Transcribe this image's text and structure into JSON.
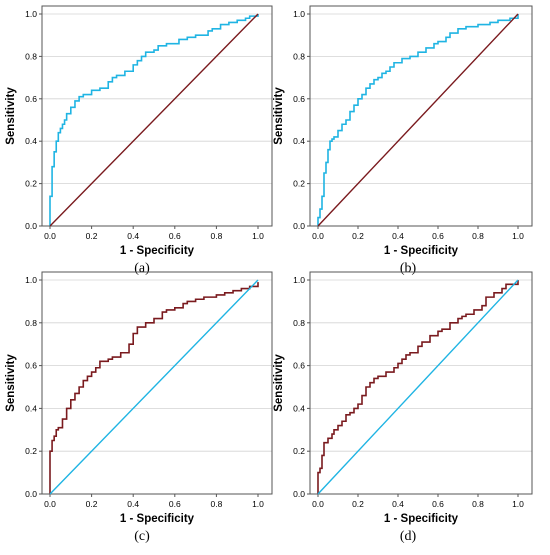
{
  "chart_data": [
    {
      "type": "line",
      "panel": "a",
      "caption": "(a)",
      "xlabel": "1 - Specificity",
      "ylabel": "Sensitivity",
      "xlim": [
        0,
        1
      ],
      "ylim": [
        0,
        1
      ],
      "x_ticks": [
        "0.0",
        "0.2",
        "0.4",
        "0.6",
        "0.8",
        "1.0"
      ],
      "y_ticks": [
        "0.0",
        "0.2",
        "0.4",
        "0.6",
        "0.8",
        "1.0"
      ],
      "grid": "horizontal",
      "colors": {
        "roc": "#1fb4e3",
        "reference": "#7a1a1e"
      },
      "series": [
        {
          "role": "roc",
          "x": [
            0.0,
            0.0,
            0.01,
            0.01,
            0.02,
            0.02,
            0.03,
            0.03,
            0.04,
            0.05,
            0.06,
            0.07,
            0.08,
            0.1,
            0.12,
            0.14,
            0.16,
            0.2,
            0.22,
            0.24,
            0.28,
            0.3,
            0.32,
            0.36,
            0.4,
            0.42,
            0.44,
            0.46,
            0.5,
            0.52,
            0.56,
            0.6,
            0.62,
            0.66,
            0.7,
            0.72,
            0.76,
            0.78,
            0.82,
            0.86,
            0.9,
            0.94,
            0.96,
            0.98,
            1.0
          ],
          "y": [
            0.0,
            0.14,
            0.2,
            0.28,
            0.3,
            0.35,
            0.36,
            0.4,
            0.44,
            0.46,
            0.48,
            0.5,
            0.53,
            0.56,
            0.59,
            0.61,
            0.62,
            0.64,
            0.64,
            0.65,
            0.68,
            0.7,
            0.71,
            0.73,
            0.76,
            0.78,
            0.8,
            0.82,
            0.83,
            0.85,
            0.86,
            0.86,
            0.88,
            0.89,
            0.9,
            0.9,
            0.92,
            0.93,
            0.95,
            0.96,
            0.97,
            0.98,
            0.99,
            0.99,
            1.0
          ]
        },
        {
          "role": "reference",
          "x": [
            0,
            1
          ],
          "y": [
            0,
            1
          ]
        }
      ]
    },
    {
      "type": "line",
      "panel": "b",
      "caption": "(b)",
      "xlabel": "1 - Specificity",
      "ylabel": "Sensitivity",
      "xlim": [
        0,
        1
      ],
      "ylim": [
        0,
        1
      ],
      "x_ticks": [
        "0.0",
        "0.2",
        "0.4",
        "0.6",
        "0.8",
        "1.0"
      ],
      "y_ticks": [
        "0.0",
        "0.2",
        "0.4",
        "0.6",
        "0.8",
        "1.0"
      ],
      "grid": "horizontal",
      "colors": {
        "roc": "#1fb4e3",
        "reference": "#7a1a1e"
      },
      "series": [
        {
          "role": "roc",
          "x": [
            0.0,
            0.0,
            0.01,
            0.02,
            0.03,
            0.03,
            0.04,
            0.05,
            0.06,
            0.07,
            0.08,
            0.1,
            0.12,
            0.14,
            0.16,
            0.18,
            0.2,
            0.22,
            0.24,
            0.26,
            0.28,
            0.3,
            0.32,
            0.34,
            0.36,
            0.38,
            0.42,
            0.46,
            0.5,
            0.54,
            0.58,
            0.6,
            0.64,
            0.66,
            0.7,
            0.74,
            0.8,
            0.86,
            0.9,
            0.96,
            1.0
          ],
          "y": [
            0.0,
            0.04,
            0.08,
            0.14,
            0.2,
            0.25,
            0.3,
            0.36,
            0.4,
            0.41,
            0.42,
            0.45,
            0.48,
            0.5,
            0.54,
            0.57,
            0.6,
            0.62,
            0.65,
            0.67,
            0.69,
            0.7,
            0.72,
            0.73,
            0.75,
            0.77,
            0.79,
            0.8,
            0.82,
            0.84,
            0.86,
            0.87,
            0.89,
            0.91,
            0.93,
            0.94,
            0.95,
            0.96,
            0.97,
            0.98,
            1.0
          ]
        },
        {
          "role": "reference",
          "x": [
            0,
            1
          ],
          "y": [
            0,
            1
          ]
        }
      ]
    },
    {
      "type": "line",
      "panel": "c",
      "caption": "(c)",
      "xlabel": "1 - Specificity",
      "ylabel": "Sensitivity",
      "xlim": [
        0,
        1
      ],
      "ylim": [
        0,
        1
      ],
      "x_ticks": [
        "0.0",
        "0.2",
        "0.4",
        "0.6",
        "0.8",
        "1.0"
      ],
      "y_ticks": [
        "0.0",
        "0.2",
        "0.4",
        "0.6",
        "0.8",
        "1.0"
      ],
      "grid": "horizontal",
      "colors": {
        "roc": "#7a1a1e",
        "reference": "#1fb4e3"
      },
      "series": [
        {
          "role": "roc",
          "x": [
            0.0,
            0.0,
            0.01,
            0.02,
            0.03,
            0.04,
            0.06,
            0.08,
            0.1,
            0.12,
            0.14,
            0.16,
            0.18,
            0.2,
            0.22,
            0.24,
            0.28,
            0.3,
            0.34,
            0.38,
            0.4,
            0.42,
            0.46,
            0.5,
            0.54,
            0.56,
            0.6,
            0.64,
            0.66,
            0.7,
            0.74,
            0.8,
            0.84,
            0.88,
            0.92,
            0.96,
            1.0
          ],
          "y": [
            0.0,
            0.2,
            0.25,
            0.27,
            0.3,
            0.31,
            0.35,
            0.4,
            0.44,
            0.47,
            0.5,
            0.53,
            0.55,
            0.57,
            0.59,
            0.62,
            0.63,
            0.64,
            0.66,
            0.7,
            0.75,
            0.78,
            0.8,
            0.82,
            0.85,
            0.86,
            0.87,
            0.89,
            0.9,
            0.91,
            0.92,
            0.93,
            0.94,
            0.95,
            0.96,
            0.97,
            0.99
          ]
        },
        {
          "role": "reference",
          "x": [
            0,
            1
          ],
          "y": [
            0,
            1
          ]
        }
      ]
    },
    {
      "type": "line",
      "panel": "d",
      "caption": "(d)",
      "xlabel": "1 - Specificity",
      "ylabel": "Sensitivity",
      "xlim": [
        0,
        1
      ],
      "ylim": [
        0,
        1
      ],
      "x_ticks": [
        "0.0",
        "0.2",
        "0.4",
        "0.6",
        "0.8",
        "1.0"
      ],
      "y_ticks": [
        "0.0",
        "0.2",
        "0.4",
        "0.6",
        "0.8",
        "1.0"
      ],
      "grid": "horizontal",
      "colors": {
        "roc": "#7a1a1e",
        "reference": "#1fb4e3"
      },
      "series": [
        {
          "role": "roc",
          "x": [
            0.0,
            0.0,
            0.01,
            0.02,
            0.03,
            0.05,
            0.07,
            0.08,
            0.1,
            0.12,
            0.14,
            0.16,
            0.18,
            0.2,
            0.22,
            0.24,
            0.26,
            0.28,
            0.3,
            0.34,
            0.38,
            0.4,
            0.42,
            0.44,
            0.46,
            0.5,
            0.52,
            0.56,
            0.6,
            0.62,
            0.66,
            0.7,
            0.72,
            0.74,
            0.78,
            0.82,
            0.84,
            0.88,
            0.92,
            0.94,
            1.0
          ],
          "y": [
            0.0,
            0.1,
            0.12,
            0.18,
            0.24,
            0.26,
            0.28,
            0.3,
            0.32,
            0.34,
            0.37,
            0.38,
            0.4,
            0.42,
            0.46,
            0.5,
            0.52,
            0.54,
            0.55,
            0.57,
            0.59,
            0.61,
            0.63,
            0.65,
            0.66,
            0.69,
            0.71,
            0.74,
            0.76,
            0.77,
            0.8,
            0.82,
            0.83,
            0.84,
            0.86,
            0.88,
            0.92,
            0.94,
            0.96,
            0.98,
            1.0
          ]
        },
        {
          "role": "reference",
          "x": [
            0,
            1
          ],
          "y": [
            0,
            1
          ]
        }
      ]
    }
  ]
}
